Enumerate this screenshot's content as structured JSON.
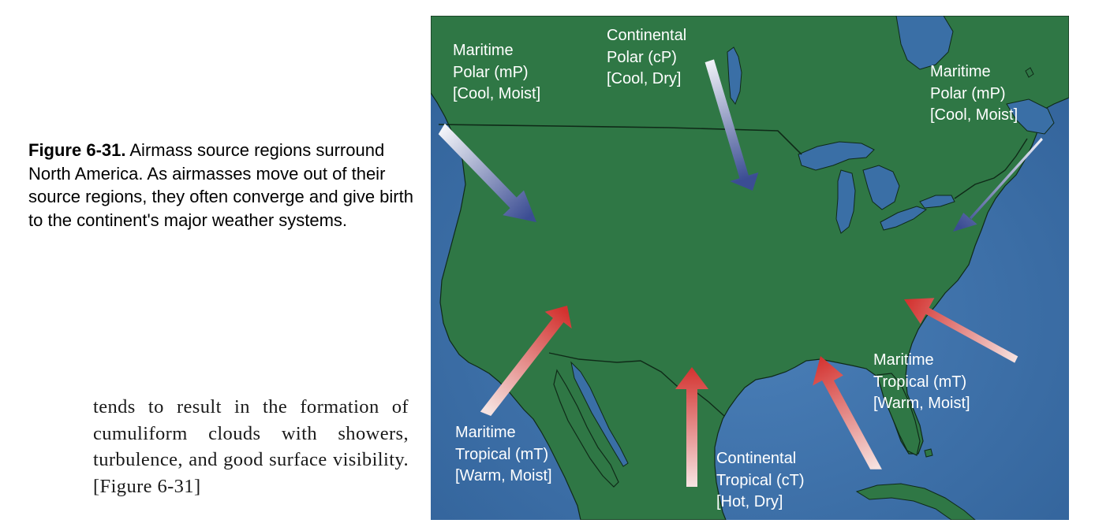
{
  "caption": {
    "figure_label": "Figure 6-31.",
    "text": " Airmass source regions surround North America. As airmasses move out of their source regions, they often converge and give birth to the continent's major weather systems."
  },
  "body_text": "tends to result in the formation of cumuliform clouds with showers, turbulence, and good surface visibility. [Figure 6-31]",
  "map": {
    "colors": {
      "ocean": "#3a6fa6",
      "land": "#2f7745",
      "cool_arrow": "#3a4f95",
      "warm_arrow": "#d23a35"
    },
    "labels": [
      {
        "name": "mp-west",
        "lines": [
          "Maritime",
          "Polar (mP)",
          "[Cool, Moist]"
        ],
        "arrow": "cool"
      },
      {
        "name": "cp-north",
        "lines": [
          "Continental",
          "Polar (cP)",
          "[Cool, Dry]"
        ],
        "arrow": "cool"
      },
      {
        "name": "mp-east",
        "lines": [
          "Maritime",
          "Polar (mP)",
          "[Cool, Moist]"
        ],
        "arrow": "cool"
      },
      {
        "name": "mt-west",
        "lines": [
          "Maritime",
          "Tropical (mT)",
          "[Warm, Moist]"
        ],
        "arrow": "warm"
      },
      {
        "name": "ct-south",
        "lines": [
          "Continental",
          "Tropical (cT)",
          "[Hot, Dry]"
        ],
        "arrow": "warm"
      },
      {
        "name": "mt-east",
        "lines": [
          "Maritime",
          "Tropical (mT)",
          "[Warm, Moist]"
        ],
        "arrow": "warm"
      }
    ]
  }
}
